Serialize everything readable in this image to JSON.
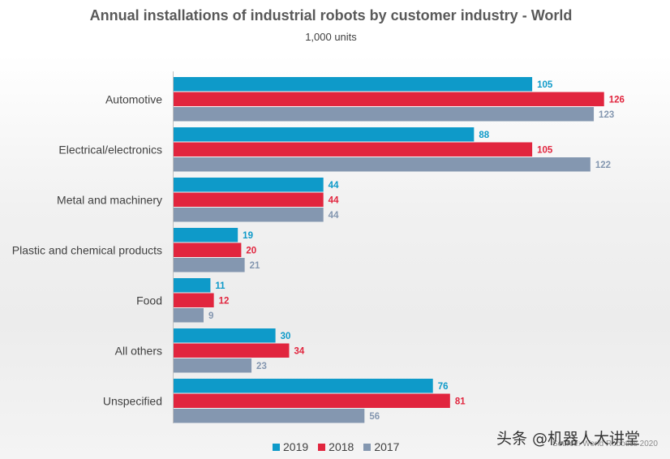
{
  "chart_data": {
    "type": "bar",
    "orientation": "horizontal",
    "title": "Annual installations of industrial robots by customer industry - World",
    "subtitle": "1,000 units",
    "categories": [
      "Automotive",
      "Electrical/electronics",
      "Metal and machinery",
      "Plastic and chemical products",
      "Food",
      "All others",
      "Unspecified"
    ],
    "series": [
      {
        "name": "2019",
        "color": "#0e9ac9",
        "values": [
          105,
          88,
          44,
          19,
          11,
          30,
          76
        ]
      },
      {
        "name": "2018",
        "color": "#e1253e",
        "values": [
          126,
          105,
          44,
          20,
          12,
          34,
          81
        ]
      },
      {
        "name": "2017",
        "color": "#8497b0",
        "values": [
          123,
          122,
          44,
          21,
          9,
          23,
          56
        ]
      }
    ],
    "xlim": [
      0,
      130
    ],
    "grid": false,
    "legend_position": "bottom"
  },
  "source": "Source: World Robotics 2020",
  "watermark": "头条 @机器人大讲堂"
}
